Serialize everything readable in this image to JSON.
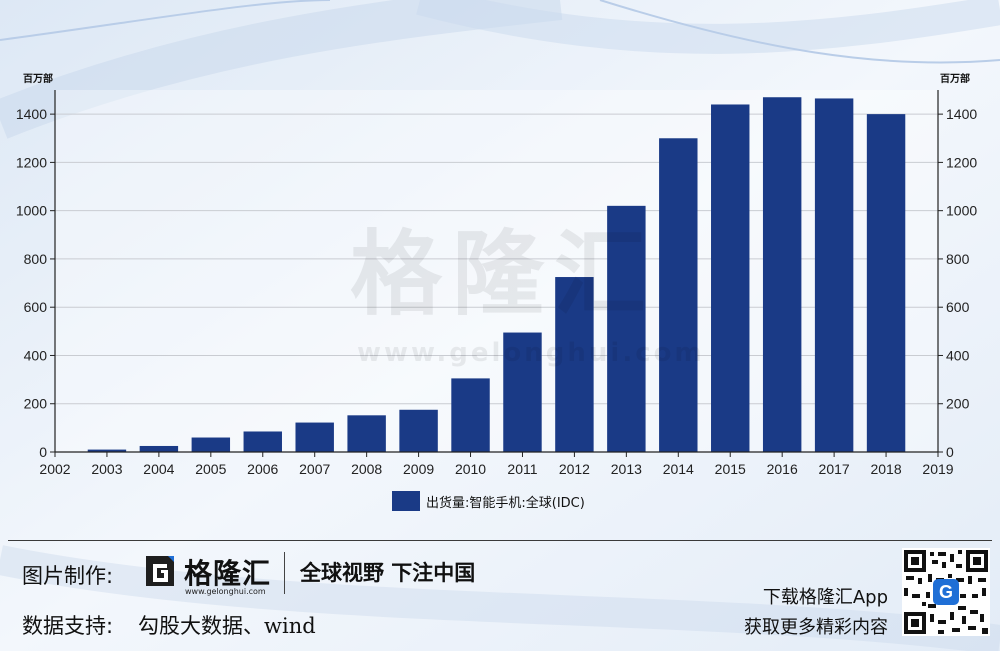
{
  "chart_data": {
    "type": "bar",
    "x_range": [
      2002,
      2019
    ],
    "x_ticks": [
      "2002",
      "2003",
      "2004",
      "2005",
      "2006",
      "2007",
      "2008",
      "2009",
      "2010",
      "2011",
      "2012",
      "2013",
      "2014",
      "2015",
      "2016",
      "2017",
      "2018",
      "2019"
    ],
    "categories": [
      "2003",
      "2004",
      "2005",
      "2006",
      "2007",
      "2008",
      "2009",
      "2010",
      "2011",
      "2012",
      "2013",
      "2014",
      "2015",
      "2016",
      "2017",
      "2018"
    ],
    "series": [
      {
        "name": "出货量:智能手机:全球(IDC)",
        "color": "#1a3a86",
        "values": [
          10,
          25,
          60,
          85,
          122,
          152,
          175,
          305,
          495,
          725,
          1020,
          1300,
          1440,
          1470,
          1465,
          1400
        ]
      }
    ],
    "ylim": [
      0,
      1500
    ],
    "y_ticks": [
      "0",
      "200",
      "400",
      "600",
      "800",
      "1000",
      "1200",
      "1400"
    ],
    "y_unit_left": "百万部",
    "y_unit_right": "百万部",
    "grid": true,
    "legend_position": "bottom-center"
  },
  "watermark": {
    "text": "格隆汇",
    "url": "www.gelonghui.com"
  },
  "footer": {
    "image_credit_label": "图片制作:",
    "brand_name": "格隆汇",
    "brand_url": "www.gelonghui.com",
    "slogan": "全球视野 下注中国",
    "data_source_label": "数据支持:",
    "data_source": "勾股大数据、wind",
    "download_text": "下载格隆汇App",
    "more_text": "获取更多精彩内容",
    "qr_badge": "G"
  },
  "colors": {
    "bar": "#1a3a86",
    "logo_blue": "#1f6fd6",
    "background": "#eef3f9"
  }
}
